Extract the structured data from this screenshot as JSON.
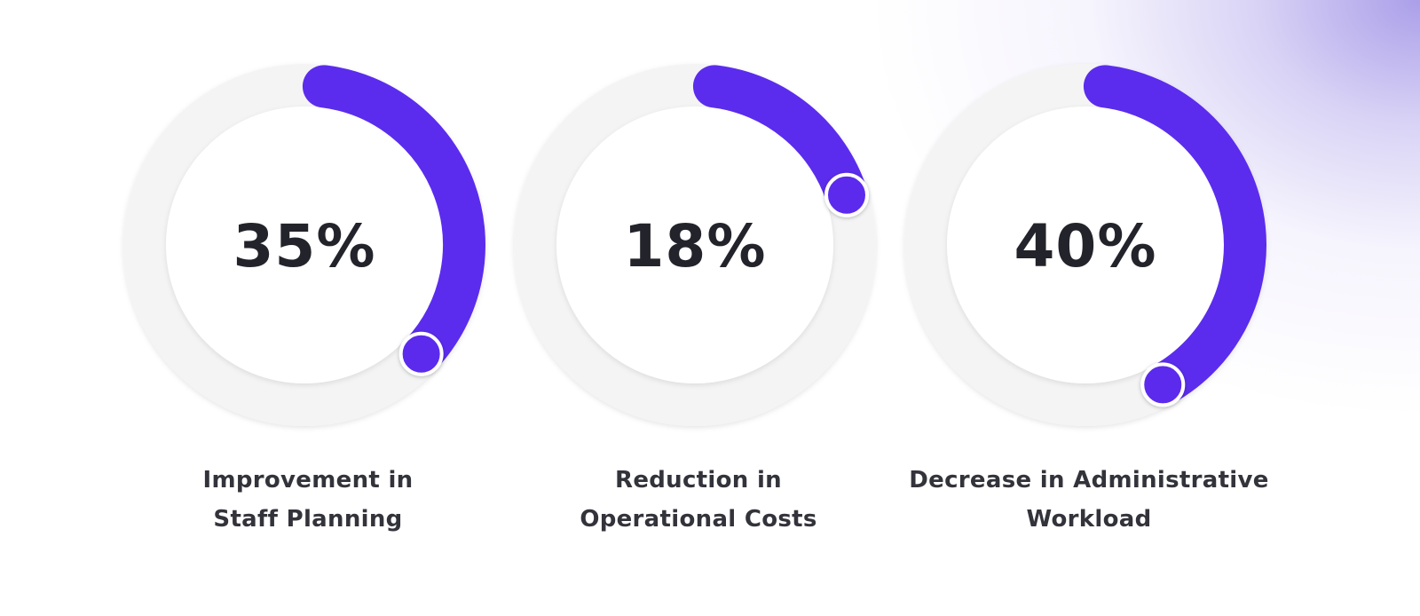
{
  "accent_color": "#5b2ced",
  "track_color": "#f4f4f4",
  "stats": [
    {
      "value_text": "35%",
      "percent": 35,
      "label_line1": "Improvement in",
      "label_line2": "Staff Planning"
    },
    {
      "value_text": "18%",
      "percent": 18,
      "label_line1": "Reduction in",
      "label_line2": "Operational Costs"
    },
    {
      "value_text": "40%",
      "percent": 40,
      "label_line1": "Decrease in Administrative",
      "label_line2": "Workload"
    }
  ]
}
